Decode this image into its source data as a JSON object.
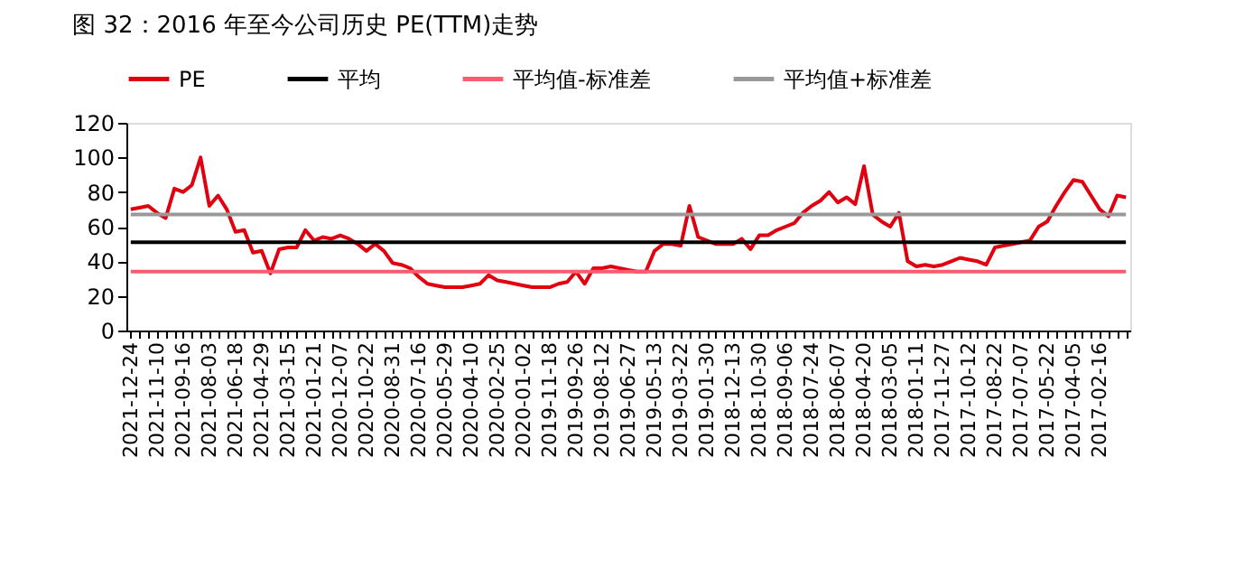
{
  "chart_data": {
    "type": "line",
    "title": "图 32：2016 年至今公司历史 PE(TTM)走势",
    "categories": [
      "2021-12-24",
      null,
      null,
      "2021-11-10",
      null,
      null,
      "2021-09-16",
      null,
      null,
      "2021-08-03",
      null,
      null,
      "2021-06-18",
      null,
      null,
      "2021-04-29",
      null,
      null,
      "2021-03-15",
      null,
      null,
      "2021-01-21",
      null,
      null,
      "2020-12-07",
      null,
      null,
      "2020-10-22",
      null,
      null,
      "2020-08-31",
      null,
      null,
      "2020-07-16",
      null,
      null,
      "2020-05-29",
      null,
      null,
      "2020-04-10",
      null,
      null,
      "2020-02-25",
      null,
      null,
      "2020-01-02",
      null,
      null,
      "2019-11-18",
      null,
      null,
      "2019-09-26",
      null,
      null,
      "2019-08-12",
      null,
      null,
      "2019-06-27",
      null,
      null,
      "2019-05-13",
      null,
      null,
      "2019-03-22",
      null,
      null,
      "2019-01-30",
      null,
      null,
      "2018-12-13",
      null,
      null,
      "2018-10-30",
      null,
      null,
      "2018-09-06",
      null,
      null,
      "2018-07-24",
      null,
      null,
      "2018-06-07",
      null,
      null,
      "2018-04-20",
      null,
      null,
      "2018-03-05",
      null,
      null,
      "2018-01-11",
      null,
      null,
      "2017-11-27",
      null,
      null,
      "2017-10-12",
      null,
      null,
      "2017-08-22",
      null,
      null,
      "2017-07-07",
      null,
      null,
      "2017-05-22",
      null,
      null,
      "2017-04-05",
      null,
      null,
      "2017-02-16",
      null,
      null,
      null
    ],
    "series": [
      {
        "name": "PE",
        "color": "#e00010",
        "values": [
          70,
          71,
          72,
          68,
          65,
          82,
          80,
          84,
          100,
          72,
          78,
          70,
          57,
          58,
          45,
          46,
          33,
          47,
          48,
          48,
          58,
          52,
          54,
          53,
          55,
          53,
          50,
          46,
          50,
          46,
          39,
          38,
          36,
          31,
          27,
          26,
          25,
          25,
          25,
          26,
          27,
          32,
          29,
          28,
          27,
          26,
          25,
          25,
          25,
          27,
          28,
          34,
          27,
          36,
          36,
          37,
          36,
          35,
          34,
          34,
          46,
          50,
          50,
          49,
          72,
          54,
          52,
          50,
          50,
          50,
          53,
          47,
          55,
          55,
          58,
          60,
          62,
          68,
          72,
          75,
          80,
          74,
          77,
          73,
          95,
          67,
          63,
          60,
          68,
          40,
          37,
          38,
          37,
          38,
          40,
          42,
          41,
          40,
          38,
          48,
          49,
          50,
          51,
          52,
          60,
          63,
          72,
          80,
          87,
          86,
          78,
          70,
          66,
          78,
          77
        ]
      },
      {
        "name": "平均",
        "color": "#000000",
        "values": [
          51,
          51,
          51,
          51,
          51,
          51,
          51,
          51,
          51,
          51,
          51,
          51,
          51,
          51,
          51,
          51,
          51,
          51,
          51,
          51,
          51,
          51,
          51,
          51,
          51,
          51,
          51,
          51,
          51,
          51,
          51,
          51,
          51,
          51,
          51,
          51,
          51,
          51,
          51,
          51,
          51,
          51,
          51,
          51,
          51,
          51,
          51,
          51,
          51,
          51,
          51,
          51,
          51,
          51,
          51,
          51,
          51,
          51,
          51,
          51,
          51,
          51,
          51,
          51,
          51,
          51,
          51,
          51,
          51,
          51,
          51,
          51,
          51,
          51,
          51,
          51,
          51,
          51,
          51,
          51,
          51,
          51,
          51,
          51,
          51,
          51,
          51,
          51,
          51,
          51,
          51,
          51,
          51,
          51,
          51,
          51,
          51,
          51,
          51,
          51,
          51,
          51,
          51,
          51,
          51,
          51,
          51,
          51,
          51,
          51,
          51,
          51,
          51,
          51,
          51
        ]
      },
      {
        "name": "平均值-标准差",
        "color": "#ff5b6e",
        "values": [
          34,
          34,
          34,
          34,
          34,
          34,
          34,
          34,
          34,
          34,
          34,
          34,
          34,
          34,
          34,
          34,
          34,
          34,
          34,
          34,
          34,
          34,
          34,
          34,
          34,
          34,
          34,
          34,
          34,
          34,
          34,
          34,
          34,
          34,
          34,
          34,
          34,
          34,
          34,
          34,
          34,
          34,
          34,
          34,
          34,
          34,
          34,
          34,
          34,
          34,
          34,
          34,
          34,
          34,
          34,
          34,
          34,
          34,
          34,
          34,
          34,
          34,
          34,
          34,
          34,
          34,
          34,
          34,
          34,
          34,
          34,
          34,
          34,
          34,
          34,
          34,
          34,
          34,
          34,
          34,
          34,
          34,
          34,
          34,
          34,
          34,
          34,
          34,
          34,
          34,
          34,
          34,
          34,
          34,
          34,
          34,
          34,
          34,
          34,
          34,
          34,
          34,
          34,
          34,
          34,
          34,
          34,
          34,
          34,
          34,
          34,
          34,
          34,
          34,
          34
        ]
      },
      {
        "name": "平均值+标准差",
        "color": "#999999",
        "values": [
          67,
          67,
          67,
          67,
          67,
          67,
          67,
          67,
          67,
          67,
          67,
          67,
          67,
          67,
          67,
          67,
          67,
          67,
          67,
          67,
          67,
          67,
          67,
          67,
          67,
          67,
          67,
          67,
          67,
          67,
          67,
          67,
          67,
          67,
          67,
          67,
          67,
          67,
          67,
          67,
          67,
          67,
          67,
          67,
          67,
          67,
          67,
          67,
          67,
          67,
          67,
          67,
          67,
          67,
          67,
          67,
          67,
          67,
          67,
          67,
          67,
          67,
          67,
          67,
          67,
          67,
          67,
          67,
          67,
          67,
          67,
          67,
          67,
          67,
          67,
          67,
          67,
          67,
          67,
          67,
          67,
          67,
          67,
          67,
          67,
          67,
          67,
          67,
          67,
          67,
          67,
          67,
          67,
          67,
          67,
          67,
          67,
          67,
          67,
          67,
          67,
          67,
          67,
          67,
          67,
          67,
          67,
          67,
          67,
          67,
          67,
          67,
          67,
          67,
          67
        ]
      }
    ],
    "ylim": [
      0,
      120
    ],
    "yticks": [
      0,
      20,
      40,
      60,
      80,
      100,
      120
    ],
    "grid": false,
    "legend": "top",
    "line_style": "solid",
    "marker": "none"
  }
}
